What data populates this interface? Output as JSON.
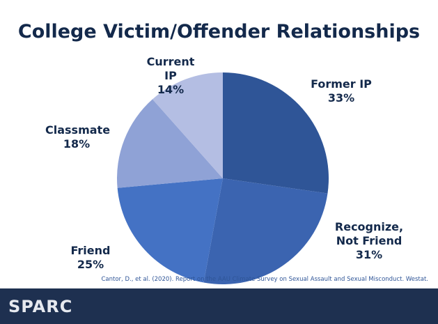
{
  "chart_data": {
    "type": "pie",
    "title": "College Victim/Offender Relationships",
    "categories": [
      "Former IP",
      "Recognize, Not Friend",
      "Friend",
      "Classmate",
      "Current IP"
    ],
    "values": [
      33,
      31,
      25,
      18,
      14
    ],
    "value_labels": [
      "33%",
      "31%",
      "25%",
      "18%",
      "14%"
    ],
    "colors": [
      "#2f5597",
      "#3b64b0",
      "#4472c4",
      "#8fa2d6",
      "#b4bee3"
    ],
    "source": "Cantor, D., et al. (2020). Report on the AAU Climate Survey on Sexual Assault and Sexual Misconduct. Westat.",
    "logo": "SPARC"
  }
}
